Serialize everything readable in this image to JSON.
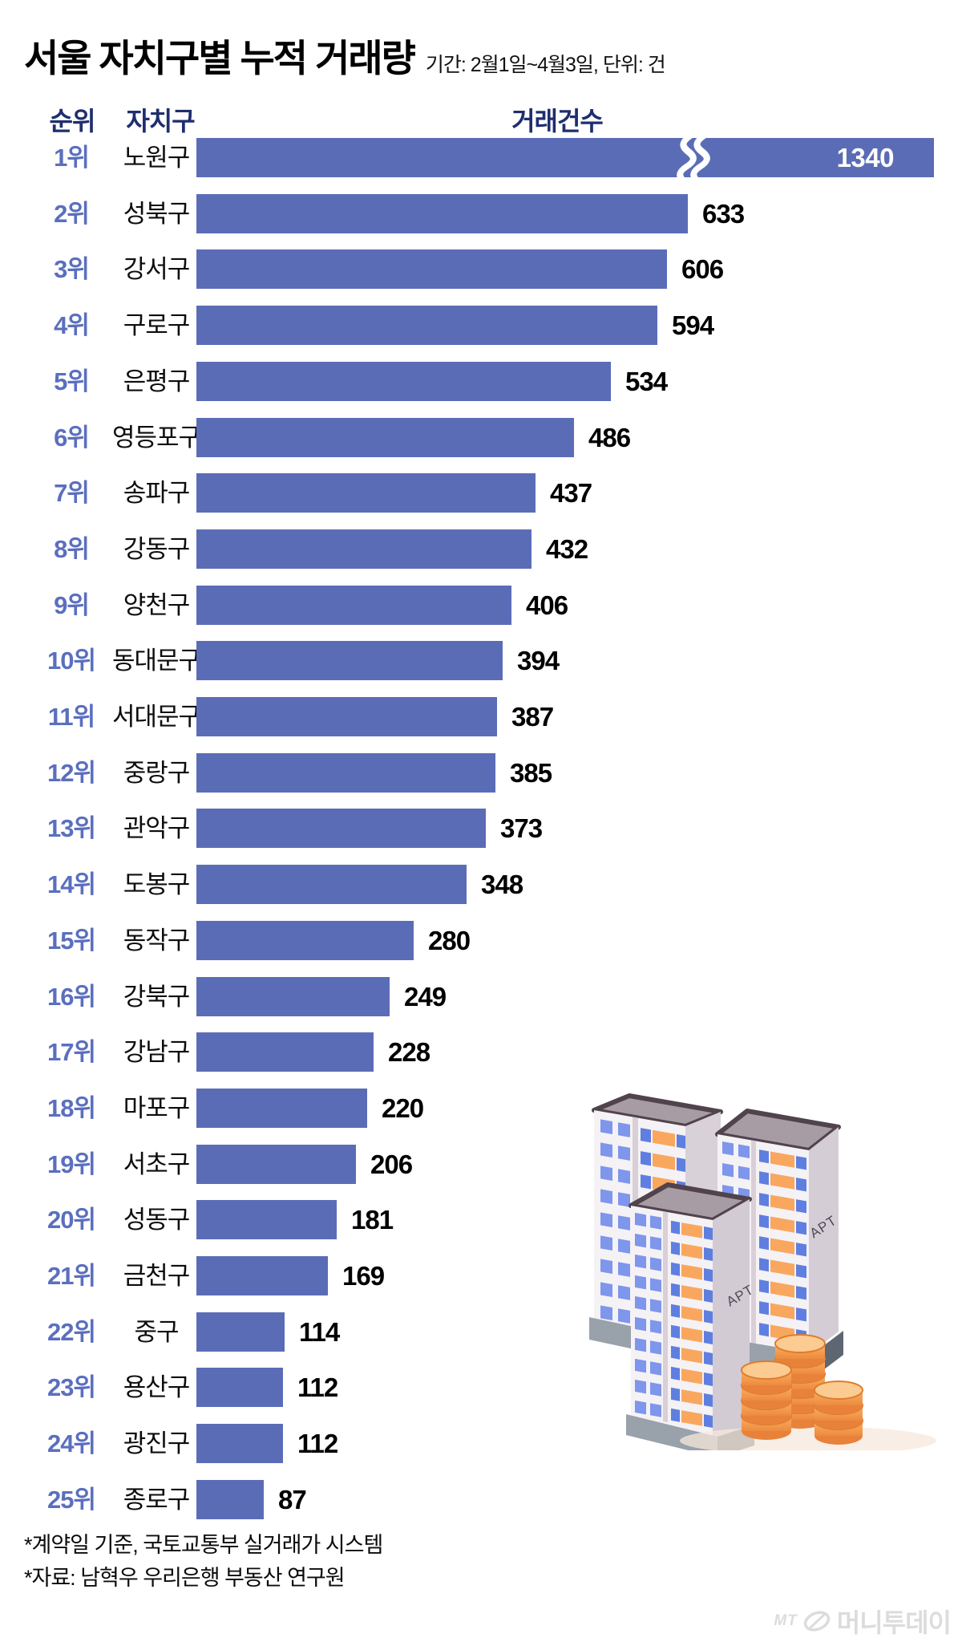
{
  "title": "서울 자치구별 누적 거래량",
  "subtitle": "기간: 2월1일~4월3일, 단위: 건",
  "columns": {
    "rank": "순위",
    "district": "자치구",
    "count": "거래건수"
  },
  "footnotes": {
    "line1": "*계약일 기준, 국토교통부 실거래가 시스템",
    "line2": "*자료: 남혁우 우리은행 부동산 연구원"
  },
  "logo": {
    "mt": "MT",
    "name": "머니투데이"
  },
  "illustration": {
    "apt_label": "APT"
  },
  "colors": {
    "bar": "#5B6CB7",
    "rank_text": "#5B6FBF",
    "header_text": "#1F2E6E",
    "value_text": "#000000",
    "bar_value_inside": "#FFFFFF",
    "logo": "#DCDCDC",
    "coin_orange": "#F9A75F",
    "window_blue": "#5F7FE0"
  },
  "chart_data": {
    "type": "bar",
    "orientation": "horizontal",
    "title": "서울 자치구별 누적 거래량",
    "period": "2월1일~4월3일",
    "unit": "건",
    "value_axis_label": "거래건수",
    "axis_break_on_rank": 1,
    "rows": [
      {
        "rank": "1위",
        "district": "노원구",
        "value": 1340,
        "broken_bar": true
      },
      {
        "rank": "2위",
        "district": "성북구",
        "value": 633
      },
      {
        "rank": "3위",
        "district": "강서구",
        "value": 606
      },
      {
        "rank": "4위",
        "district": "구로구",
        "value": 594
      },
      {
        "rank": "5위",
        "district": "은평구",
        "value": 534
      },
      {
        "rank": "6위",
        "district": "영등포구",
        "value": 486
      },
      {
        "rank": "7위",
        "district": "송파구",
        "value": 437
      },
      {
        "rank": "8위",
        "district": "강동구",
        "value": 432
      },
      {
        "rank": "9위",
        "district": "양천구",
        "value": 406
      },
      {
        "rank": "10위",
        "district": "동대문구",
        "value": 394
      },
      {
        "rank": "11위",
        "district": "서대문구",
        "value": 387
      },
      {
        "rank": "12위",
        "district": "중랑구",
        "value": 385
      },
      {
        "rank": "13위",
        "district": "관악구",
        "value": 373
      },
      {
        "rank": "14위",
        "district": "도봉구",
        "value": 348
      },
      {
        "rank": "15위",
        "district": "동작구",
        "value": 280
      },
      {
        "rank": "16위",
        "district": "강북구",
        "value": 249
      },
      {
        "rank": "17위",
        "district": "강남구",
        "value": 228
      },
      {
        "rank": "18위",
        "district": "마포구",
        "value": 220
      },
      {
        "rank": "19위",
        "district": "서초구",
        "value": 206
      },
      {
        "rank": "20위",
        "district": "성동구",
        "value": 181
      },
      {
        "rank": "21위",
        "district": "금천구",
        "value": 169
      },
      {
        "rank": "22위",
        "district": "중구",
        "value": 114
      },
      {
        "rank": "23위",
        "district": "용산구",
        "value": 112
      },
      {
        "rank": "24위",
        "district": "광진구",
        "value": 112
      },
      {
        "rank": "25위",
        "district": "종로구",
        "value": 87
      }
    ]
  }
}
